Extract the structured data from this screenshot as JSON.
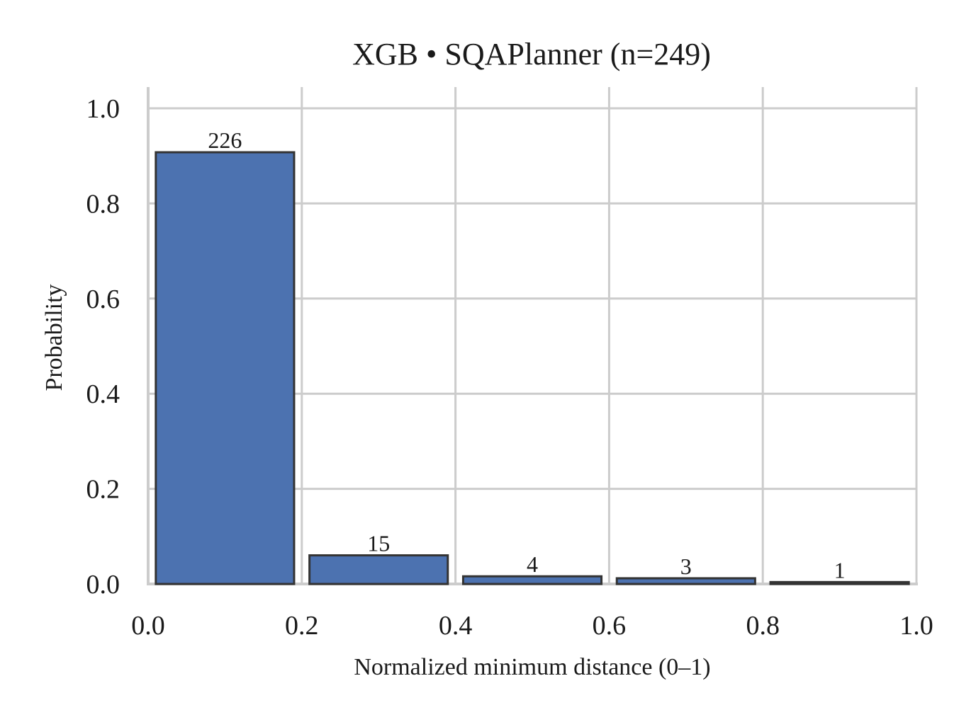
{
  "chart_data": {
    "type": "bar",
    "title": "XGB • SQAPlanner  (n=249)",
    "xlabel": "Normalized minimum distance (0–1)",
    "ylabel": "Probability",
    "xlim": [
      0.0,
      1.0
    ],
    "ylim": [
      0.0,
      1.05
    ],
    "x_ticks": [
      "0.0",
      "0.2",
      "0.4",
      "0.6",
      "0.8",
      "1.0"
    ],
    "y_ticks": [
      "0.0",
      "0.2",
      "0.4",
      "0.6",
      "0.8",
      "1.0"
    ],
    "grid": true,
    "bar_color": "#4c72b0",
    "bar_edge_color": "#333333",
    "bins": [
      {
        "x_start": 0.0,
        "x_end": 0.2,
        "value": 0.9076,
        "count_label": "226"
      },
      {
        "x_start": 0.2,
        "x_end": 0.4,
        "value": 0.0602,
        "count_label": "15"
      },
      {
        "x_start": 0.4,
        "x_end": 0.6,
        "value": 0.0161,
        "count_label": "4"
      },
      {
        "x_start": 0.6,
        "x_end": 0.8,
        "value": 0.012,
        "count_label": "3"
      },
      {
        "x_start": 0.8,
        "x_end": 1.0,
        "value": 0.004,
        "count_label": "1"
      }
    ]
  }
}
